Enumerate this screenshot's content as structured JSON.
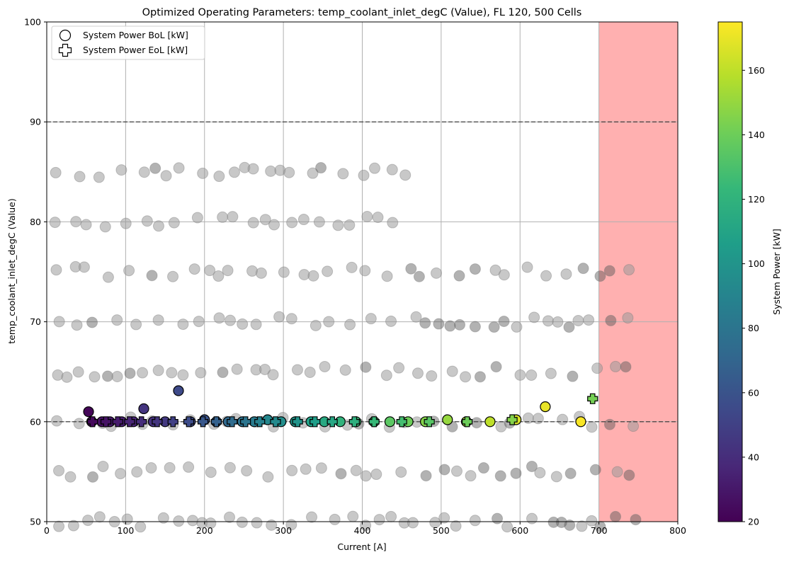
{
  "chart_data": {
    "type": "scatter",
    "title": "Optimized Operating Parameters: temp_coolant_inlet_degC (Value), FL 120, 500 Cells",
    "xlabel": "Current [A]",
    "ylabel": "temp_coolant_inlet_degC (Value)",
    "xlim": [
      0,
      800
    ],
    "ylim": [
      50,
      100
    ],
    "x_ticks": [
      "0",
      "100",
      "200",
      "300",
      "400",
      "500",
      "600",
      "700",
      "800"
    ],
    "y_ticks": [
      "50",
      "60",
      "70",
      "80",
      "90",
      "100"
    ],
    "grid": true,
    "reference_lines": [
      60,
      90
    ],
    "shaded_region": {
      "x_from": 700,
      "x_to": 800,
      "color": "#ffb0b0"
    },
    "legend": {
      "placement": "top-left",
      "entries": [
        {
          "label": "System Power BoL [kW]",
          "marker": "circle"
        },
        {
          "label": "System Power EoL [kW]",
          "marker": "plus"
        }
      ]
    },
    "colorbar": {
      "label": "System Power [kW]",
      "range": [
        20,
        175
      ],
      "ticks": [
        "20",
        "40",
        "60",
        "80",
        "100",
        "120",
        "140",
        "160"
      ],
      "colormap": [
        "#440154",
        "#482878",
        "#3e4989",
        "#31688e",
        "#26828e",
        "#1f9e89",
        "#35b779",
        "#6ece58",
        "#b5de2b",
        "#fde725"
      ]
    },
    "series": [
      {
        "name": "System Power BoL [kW]",
        "marker": "circle",
        "points": [
          [
            53,
            61.0,
            22
          ],
          [
            57,
            60.0,
            24
          ],
          [
            70,
            60.0,
            27
          ],
          [
            80,
            60.0,
            30
          ],
          [
            95,
            60.0,
            33
          ],
          [
            110,
            60.0,
            36
          ],
          [
            123,
            61.3,
            44
          ],
          [
            135,
            60.0,
            42
          ],
          [
            150,
            60.0,
            46
          ],
          [
            167,
            63.1,
            55
          ],
          [
            182,
            60.0,
            55
          ],
          [
            200,
            60.2,
            60
          ],
          [
            215,
            60.0,
            66
          ],
          [
            230,
            60.0,
            72
          ],
          [
            248,
            60.0,
            78
          ],
          [
            263,
            60.0,
            84
          ],
          [
            280,
            60.2,
            92
          ],
          [
            297,
            60.0,
            96
          ],
          [
            315,
            60.0,
            102
          ],
          [
            335,
            60.0,
            108
          ],
          [
            352,
            60.0,
            114
          ],
          [
            372,
            60.0,
            120
          ],
          [
            392,
            60.0,
            126
          ],
          [
            415,
            60.0,
            130
          ],
          [
            435,
            60.0,
            135
          ],
          [
            458,
            60.0,
            140
          ],
          [
            480,
            60.0,
            146
          ],
          [
            508,
            60.2,
            150
          ],
          [
            532,
            60.0,
            155
          ],
          [
            562,
            60.0,
            160
          ],
          [
            595,
            60.2,
            166
          ],
          [
            632,
            61.5,
            170
          ],
          [
            677,
            60.0,
            174
          ]
        ]
      },
      {
        "name": "System Power EoL [kW]",
        "marker": "plus",
        "points": [
          [
            58,
            60.0,
            24
          ],
          [
            75,
            60.0,
            28
          ],
          [
            90,
            60.0,
            32
          ],
          [
            105,
            60.0,
            36
          ],
          [
            120,
            60.0,
            40
          ],
          [
            140,
            60.0,
            44
          ],
          [
            160,
            60.0,
            50
          ],
          [
            180,
            60.0,
            56
          ],
          [
            198,
            60.0,
            62
          ],
          [
            215,
            60.0,
            68
          ],
          [
            235,
            60.0,
            74
          ],
          [
            252,
            60.0,
            80
          ],
          [
            270,
            60.0,
            88
          ],
          [
            290,
            60.0,
            94
          ],
          [
            318,
            60.0,
            100
          ],
          [
            340,
            60.0,
            106
          ],
          [
            362,
            60.0,
            112
          ],
          [
            390,
            60.0,
            118
          ],
          [
            415,
            60.0,
            124
          ],
          [
            450,
            60.0,
            128
          ],
          [
            485,
            60.0,
            134
          ],
          [
            533,
            60.0,
            140
          ],
          [
            590,
            60.2,
            146
          ],
          [
            692,
            62.3,
            142
          ]
        ]
      }
    ]
  }
}
